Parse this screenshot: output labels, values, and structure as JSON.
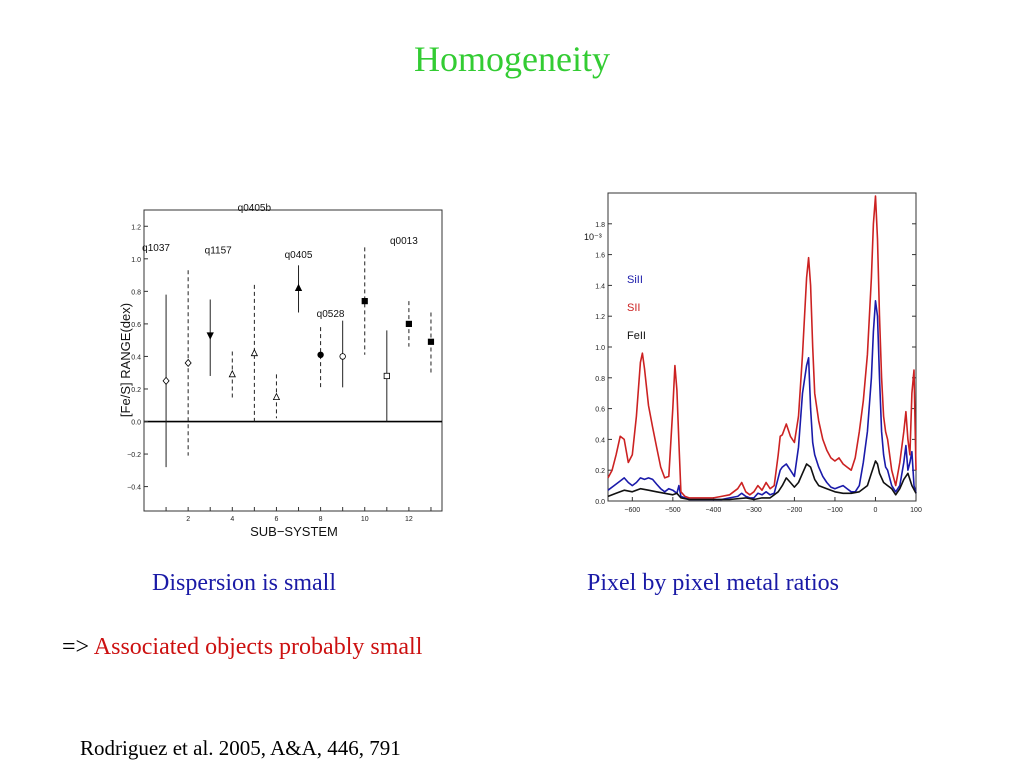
{
  "slide": {
    "title": "Homogeneity",
    "left_caption": "Dispersion is small",
    "right_caption": "Pixel by pixel metal ratios",
    "arrow": "=>",
    "conclusion": "Associated objects probably small",
    "reference": "Rodriguez et al. 2005, A&A, 446, 791"
  },
  "colors": {
    "title": "#33cc33",
    "captions": "#1a1aa6",
    "conclusion": "#cc1111"
  },
  "chart_data": [
    {
      "type": "scatter",
      "xlabel": "SUB−SYSTEM",
      "ylabel": "[Fe/S] RANGE(dex)",
      "xlim": [
        0,
        13.5
      ],
      "ylim": [
        -0.55,
        1.3
      ],
      "xticks": [
        "2",
        "4",
        "6",
        "8",
        "10",
        "12"
      ],
      "yticks": [
        "1.2",
        "1.0",
        "0.8",
        "0.6",
        "0.4",
        "0.2",
        "0.0",
        "−0.2",
        "−0.4"
      ],
      "zero_line": true,
      "points": [
        {
          "x": 1,
          "y": 0.25,
          "lo": -0.28,
          "hi": 0.78,
          "marker": "open-diamond",
          "label": "q1037"
        },
        {
          "x": 2,
          "y": 0.36,
          "lo": -0.21,
          "hi": 0.93,
          "marker": "open-diamond",
          "label": ""
        },
        {
          "x": 3,
          "y": 0.53,
          "lo": 0.28,
          "hi": 0.75,
          "marker": "filled-down",
          "label": "q1157"
        },
        {
          "x": 4,
          "y": 0.29,
          "lo": 0.14,
          "hi": 0.43,
          "marker": "open-up",
          "label": ""
        },
        {
          "x": 5,
          "y": 0.42,
          "lo": 0.0,
          "hi": 0.84,
          "marker": "open-up",
          "label": "q0405b"
        },
        {
          "x": 6,
          "y": 0.15,
          "lo": 0.02,
          "hi": 0.29,
          "marker": "open-up",
          "label": ""
        },
        {
          "x": 7,
          "y": 0.82,
          "lo": 0.67,
          "hi": 0.96,
          "marker": "filled-up",
          "label": "q0405"
        },
        {
          "x": 8,
          "y": 0.41,
          "lo": 0.2,
          "hi": 0.58,
          "marker": "filled-circle",
          "label": "q0528"
        },
        {
          "x": 9,
          "y": 0.4,
          "lo": 0.21,
          "hi": 0.62,
          "marker": "open-circle",
          "label": ""
        },
        {
          "x": 10,
          "y": 0.74,
          "lo": 0.41,
          "hi": 1.07,
          "marker": "filled-square",
          "label": ""
        },
        {
          "x": 11,
          "y": 0.28,
          "lo": 0.0,
          "hi": 0.56,
          "marker": "open-square",
          "label": ""
        },
        {
          "x": 12,
          "y": 0.6,
          "lo": 0.46,
          "hi": 0.74,
          "marker": "filled-square",
          "label": "q0013"
        },
        {
          "x": 13,
          "y": 0.49,
          "lo": 0.29,
          "hi": 0.67,
          "marker": "filled-square",
          "label": ""
        }
      ]
    },
    {
      "type": "line",
      "xlim": [
        -660,
        100
      ],
      "ylim": [
        0,
        2.0
      ],
      "xticks": [
        "−600",
        "−500",
        "−400",
        "−300",
        "−200",
        "−100",
        "0",
        "100"
      ],
      "yticks": [
        "1.8",
        "1.6",
        "1.4",
        "1.2",
        "1.0",
        "0.8",
        "0.6",
        "0.4",
        "0.2",
        "0.0"
      ],
      "yscale_note": "10⁻³",
      "series": [
        {
          "name": "SiII",
          "color": "#1a1aaa",
          "x": [
            -660,
            -645,
            -630,
            -620,
            -610,
            -600,
            -590,
            -580,
            -570,
            -560,
            -550,
            -540,
            -530,
            -520,
            -510,
            -500,
            -490,
            -485,
            -480,
            -470,
            -460,
            -440,
            -400,
            -380,
            -360,
            -340,
            -330,
            -320,
            -310,
            -300,
            -290,
            -280,
            -270,
            -260,
            -250,
            -240,
            -235,
            -230,
            -220,
            -210,
            -200,
            -190,
            -180,
            -170,
            -165,
            -160,
            -155,
            -150,
            -140,
            -130,
            -120,
            -110,
            -100,
            -90,
            -80,
            -70,
            -60,
            -50,
            -40,
            -30,
            -20,
            -10,
            -5,
            0,
            5,
            10,
            15,
            20,
            25,
            30,
            40,
            50,
            60,
            70,
            75,
            80,
            85,
            90,
            95,
            100
          ],
          "y": [
            0.07,
            0.1,
            0.13,
            0.15,
            0.12,
            0.1,
            0.12,
            0.15,
            0.14,
            0.15,
            0.14,
            0.11,
            0.08,
            0.06,
            0.08,
            0.07,
            0.05,
            0.1,
            0.03,
            0.02,
            0.01,
            0.01,
            0.01,
            0.01,
            0.02,
            0.03,
            0.05,
            0.03,
            0.02,
            0.02,
            0.05,
            0.04,
            0.06,
            0.04,
            0.05,
            0.15,
            0.2,
            0.22,
            0.24,
            0.2,
            0.16,
            0.35,
            0.7,
            0.88,
            0.93,
            0.6,
            0.38,
            0.3,
            0.22,
            0.16,
            0.12,
            0.09,
            0.08,
            0.09,
            0.1,
            0.08,
            0.06,
            0.06,
            0.1,
            0.25,
            0.45,
            0.8,
            1.1,
            1.3,
            1.2,
            0.8,
            0.45,
            0.3,
            0.22,
            0.2,
            0.1,
            0.06,
            0.1,
            0.25,
            0.36,
            0.2,
            0.25,
            0.32,
            0.1,
            0.05
          ]
        },
        {
          "name": "SII",
          "color": "#cc2222",
          "x": [
            -660,
            -650,
            -640,
            -630,
            -620,
            -610,
            -600,
            -590,
            -580,
            -575,
            -570,
            -560,
            -550,
            -540,
            -530,
            -520,
            -510,
            -500,
            -495,
            -490,
            -485,
            -480,
            -470,
            -460,
            -440,
            -400,
            -380,
            -360,
            -340,
            -330,
            -320,
            -310,
            -300,
            -290,
            -280,
            -270,
            -260,
            -250,
            -240,
            -235,
            -230,
            -220,
            -210,
            -200,
            -190,
            -180,
            -170,
            -165,
            -160,
            -155,
            -150,
            -140,
            -130,
            -120,
            -110,
            -100,
            -90,
            -80,
            -70,
            -60,
            -50,
            -40,
            -30,
            -20,
            -10,
            -5,
            0,
            5,
            10,
            15,
            20,
            25,
            30,
            40,
            50,
            60,
            70,
            75,
            80,
            85,
            90,
            95,
            100
          ],
          "y": [
            0.15,
            0.2,
            0.3,
            0.42,
            0.4,
            0.25,
            0.3,
            0.55,
            0.9,
            0.96,
            0.86,
            0.62,
            0.48,
            0.35,
            0.22,
            0.15,
            0.16,
            0.6,
            0.88,
            0.72,
            0.38,
            0.06,
            0.03,
            0.02,
            0.02,
            0.02,
            0.03,
            0.04,
            0.08,
            0.12,
            0.06,
            0.04,
            0.06,
            0.1,
            0.07,
            0.12,
            0.08,
            0.1,
            0.3,
            0.42,
            0.43,
            0.5,
            0.42,
            0.38,
            0.55,
            0.95,
            1.45,
            1.58,
            1.4,
            1.0,
            0.7,
            0.52,
            0.4,
            0.33,
            0.28,
            0.26,
            0.28,
            0.24,
            0.22,
            0.2,
            0.28,
            0.45,
            0.65,
            0.95,
            1.45,
            1.8,
            1.98,
            1.7,
            1.2,
            0.8,
            0.55,
            0.45,
            0.4,
            0.2,
            0.1,
            0.25,
            0.45,
            0.58,
            0.4,
            0.3,
            0.7,
            0.85,
            0.2
          ]
        },
        {
          "name": "FeII",
          "color": "#111111",
          "x": [
            -660,
            -640,
            -620,
            -600,
            -580,
            -560,
            -540,
            -520,
            -500,
            -490,
            -480,
            -460,
            -440,
            -400,
            -360,
            -320,
            -300,
            -280,
            -260,
            -240,
            -230,
            -220,
            -210,
            -200,
            -190,
            -180,
            -170,
            -160,
            -150,
            -140,
            -120,
            -100,
            -80,
            -60,
            -40,
            -20,
            -10,
            0,
            5,
            10,
            20,
            30,
            40,
            50,
            60,
            70,
            80,
            90,
            100
          ],
          "y": [
            0.03,
            0.05,
            0.07,
            0.06,
            0.08,
            0.07,
            0.06,
            0.05,
            0.04,
            0.05,
            0.02,
            0.01,
            0.01,
            0.01,
            0.01,
            0.02,
            0.01,
            0.02,
            0.02,
            0.06,
            0.1,
            0.15,
            0.12,
            0.09,
            0.12,
            0.18,
            0.24,
            0.22,
            0.14,
            0.1,
            0.08,
            0.06,
            0.05,
            0.05,
            0.06,
            0.1,
            0.18,
            0.26,
            0.24,
            0.18,
            0.12,
            0.1,
            0.08,
            0.04,
            0.08,
            0.14,
            0.18,
            0.1,
            0.05
          ]
        }
      ]
    }
  ]
}
